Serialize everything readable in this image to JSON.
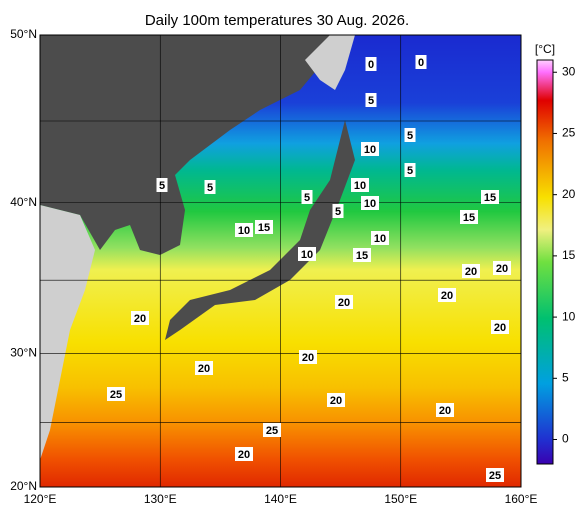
{
  "title": "Daily 100m temperatures 30 Aug. 2026.",
  "lon_lim": [
    120,
    160
  ],
  "lat_lim": [
    20,
    50
  ],
  "lon_ticks": [
    {
      "value": 120,
      "label": "120°E"
    },
    {
      "value": 130,
      "label": "130°E"
    },
    {
      "value": 140,
      "label": "140°E"
    },
    {
      "value": 150,
      "label": "150°E"
    },
    {
      "value": 160,
      "label": "160°E"
    }
  ],
  "lat_ticks": [
    {
      "value": 20,
      "label": "20°N"
    },
    {
      "value": 30,
      "label": "30°N"
    },
    {
      "value": 40,
      "label": "40°N"
    },
    {
      "value": 50,
      "label": "50°N"
    }
  ],
  "lat_grid": [
    25,
    35,
    45
  ],
  "colorbar": {
    "unit": "[°C]",
    "lim": [
      -2,
      31
    ],
    "ticks": [
      0,
      5,
      10,
      15,
      20,
      25,
      30
    ]
  },
  "contour_labels": [
    "0",
    "0",
    "5",
    "5",
    "10",
    "5",
    "10",
    "5",
    "5",
    "5",
    "5",
    "10",
    "15",
    "15",
    "10",
    "15",
    "10",
    "15",
    "10",
    "20",
    "20",
    "20",
    "20",
    "20",
    "20",
    "20",
    "20",
    "25",
    "20",
    "20",
    "25",
    "20",
    "25"
  ]
}
